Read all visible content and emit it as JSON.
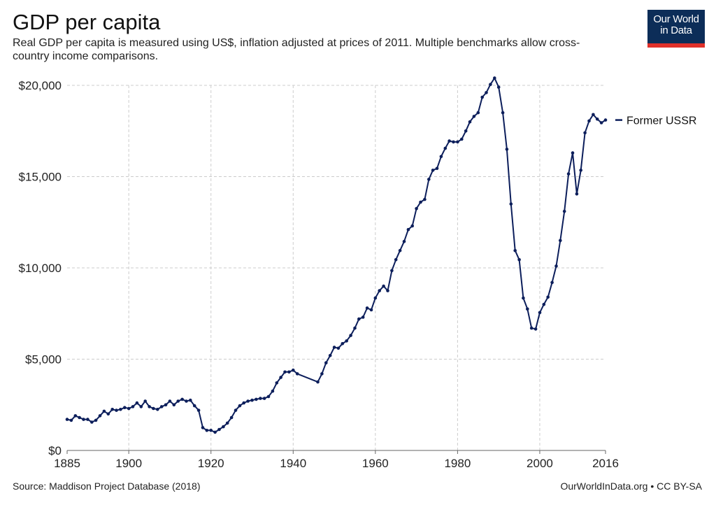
{
  "header": {
    "title": "GDP per capita",
    "subtitle": "Real GDP per capita is measured using US$, inflation adjusted at prices of 2011. Multiple benchmarks allow cross-country income comparisons."
  },
  "logo": {
    "line1": "Our World",
    "line2": "in Data"
  },
  "footer": {
    "source": "Source: Maddison Project Database (2018)",
    "license": "OurWorldInData.org • CC BY-SA"
  },
  "colors": {
    "series": "#0c1e5b",
    "grid": "#cccccc",
    "logo_bg": "#0c2d58",
    "logo_accent": "#e0302a"
  },
  "chart_data": {
    "type": "line",
    "title": "GDP per capita",
    "xlabel": "",
    "ylabel": "",
    "xlim": [
      1885,
      2016
    ],
    "ylim": [
      0,
      20000
    ],
    "x_ticks": [
      1885,
      1900,
      1920,
      1940,
      1960,
      1980,
      2000,
      2016
    ],
    "y_ticks": [
      0,
      5000,
      10000,
      15000,
      20000
    ],
    "y_tick_labels": [
      "$0",
      "$5,000",
      "$10,000",
      "$15,000",
      "$20,000"
    ],
    "grid": true,
    "legend": "right",
    "series": [
      {
        "name": "Former USSR",
        "points": [
          [
            1885,
            1700
          ],
          [
            1886,
            1650
          ],
          [
            1887,
            1900
          ],
          [
            1888,
            1800
          ],
          [
            1889,
            1700
          ],
          [
            1890,
            1700
          ],
          [
            1891,
            1550
          ],
          [
            1892,
            1650
          ],
          [
            1893,
            1900
          ],
          [
            1894,
            2150
          ],
          [
            1895,
            2000
          ],
          [
            1896,
            2250
          ],
          [
            1897,
            2200
          ],
          [
            1898,
            2250
          ],
          [
            1899,
            2350
          ],
          [
            1900,
            2300
          ],
          [
            1901,
            2400
          ],
          [
            1902,
            2600
          ],
          [
            1903,
            2400
          ],
          [
            1904,
            2700
          ],
          [
            1905,
            2400
          ],
          [
            1906,
            2300
          ],
          [
            1907,
            2250
          ],
          [
            1908,
            2400
          ],
          [
            1909,
            2500
          ],
          [
            1910,
            2700
          ],
          [
            1911,
            2500
          ],
          [
            1912,
            2700
          ],
          [
            1913,
            2800
          ],
          [
            1914,
            2700
          ],
          [
            1915,
            2750
          ],
          [
            1916,
            2450
          ],
          [
            1917,
            2200
          ],
          [
            1918,
            1250
          ],
          [
            1919,
            1100
          ],
          [
            1920,
            1100
          ],
          [
            1921,
            1000
          ],
          [
            1922,
            1150
          ],
          [
            1923,
            1300
          ],
          [
            1924,
            1500
          ],
          [
            1925,
            1800
          ],
          [
            1926,
            2200
          ],
          [
            1927,
            2450
          ],
          [
            1928,
            2600
          ],
          [
            1929,
            2700
          ],
          [
            1930,
            2750
          ],
          [
            1931,
            2800
          ],
          [
            1932,
            2850
          ],
          [
            1933,
            2850
          ],
          [
            1934,
            2950
          ],
          [
            1935,
            3250
          ],
          [
            1936,
            3700
          ],
          [
            1937,
            4000
          ],
          [
            1938,
            4300
          ],
          [
            1939,
            4300
          ],
          [
            1940,
            4400
          ],
          [
            1941,
            4200
          ],
          [
            1946,
            3750
          ],
          [
            1947,
            4200
          ],
          [
            1948,
            4800
          ],
          [
            1949,
            5200
          ],
          [
            1950,
            5650
          ],
          [
            1951,
            5600
          ],
          [
            1952,
            5850
          ],
          [
            1953,
            6000
          ],
          [
            1954,
            6300
          ],
          [
            1955,
            6700
          ],
          [
            1956,
            7200
          ],
          [
            1957,
            7300
          ],
          [
            1958,
            7800
          ],
          [
            1959,
            7700
          ],
          [
            1960,
            8350
          ],
          [
            1961,
            8750
          ],
          [
            1962,
            9000
          ],
          [
            1963,
            8750
          ],
          [
            1964,
            9850
          ],
          [
            1965,
            10450
          ],
          [
            1966,
            10950
          ],
          [
            1967,
            11450
          ],
          [
            1968,
            12100
          ],
          [
            1969,
            12300
          ],
          [
            1970,
            13250
          ],
          [
            1971,
            13600
          ],
          [
            1972,
            13750
          ],
          [
            1973,
            14850
          ],
          [
            1974,
            15350
          ],
          [
            1975,
            15450
          ],
          [
            1976,
            16100
          ],
          [
            1977,
            16550
          ],
          [
            1978,
            16950
          ],
          [
            1979,
            16900
          ],
          [
            1980,
            16900
          ],
          [
            1981,
            17050
          ],
          [
            1982,
            17500
          ],
          [
            1983,
            18000
          ],
          [
            1984,
            18300
          ],
          [
            1985,
            18500
          ],
          [
            1986,
            19350
          ],
          [
            1987,
            19600
          ],
          [
            1988,
            20050
          ],
          [
            1989,
            20400
          ],
          [
            1990,
            19900
          ],
          [
            1991,
            18500
          ],
          [
            1992,
            16500
          ],
          [
            1993,
            13500
          ],
          [
            1994,
            10950
          ],
          [
            1995,
            10450
          ],
          [
            1996,
            8350
          ],
          [
            1997,
            7750
          ],
          [
            1998,
            6700
          ],
          [
            1999,
            6650
          ],
          [
            2000,
            7550
          ],
          [
            2001,
            8000
          ],
          [
            2002,
            8400
          ],
          [
            2003,
            9200
          ],
          [
            2004,
            10100
          ],
          [
            2005,
            11500
          ],
          [
            2006,
            13100
          ],
          [
            2007,
            15150
          ],
          [
            2008,
            16300
          ],
          [
            2009,
            14050
          ],
          [
            2010,
            15350
          ],
          [
            2011,
            17400
          ],
          [
            2012,
            18050
          ],
          [
            2013,
            18400
          ],
          [
            2014,
            18150
          ],
          [
            2015,
            17950
          ],
          [
            2016,
            18100
          ]
        ]
      }
    ]
  }
}
